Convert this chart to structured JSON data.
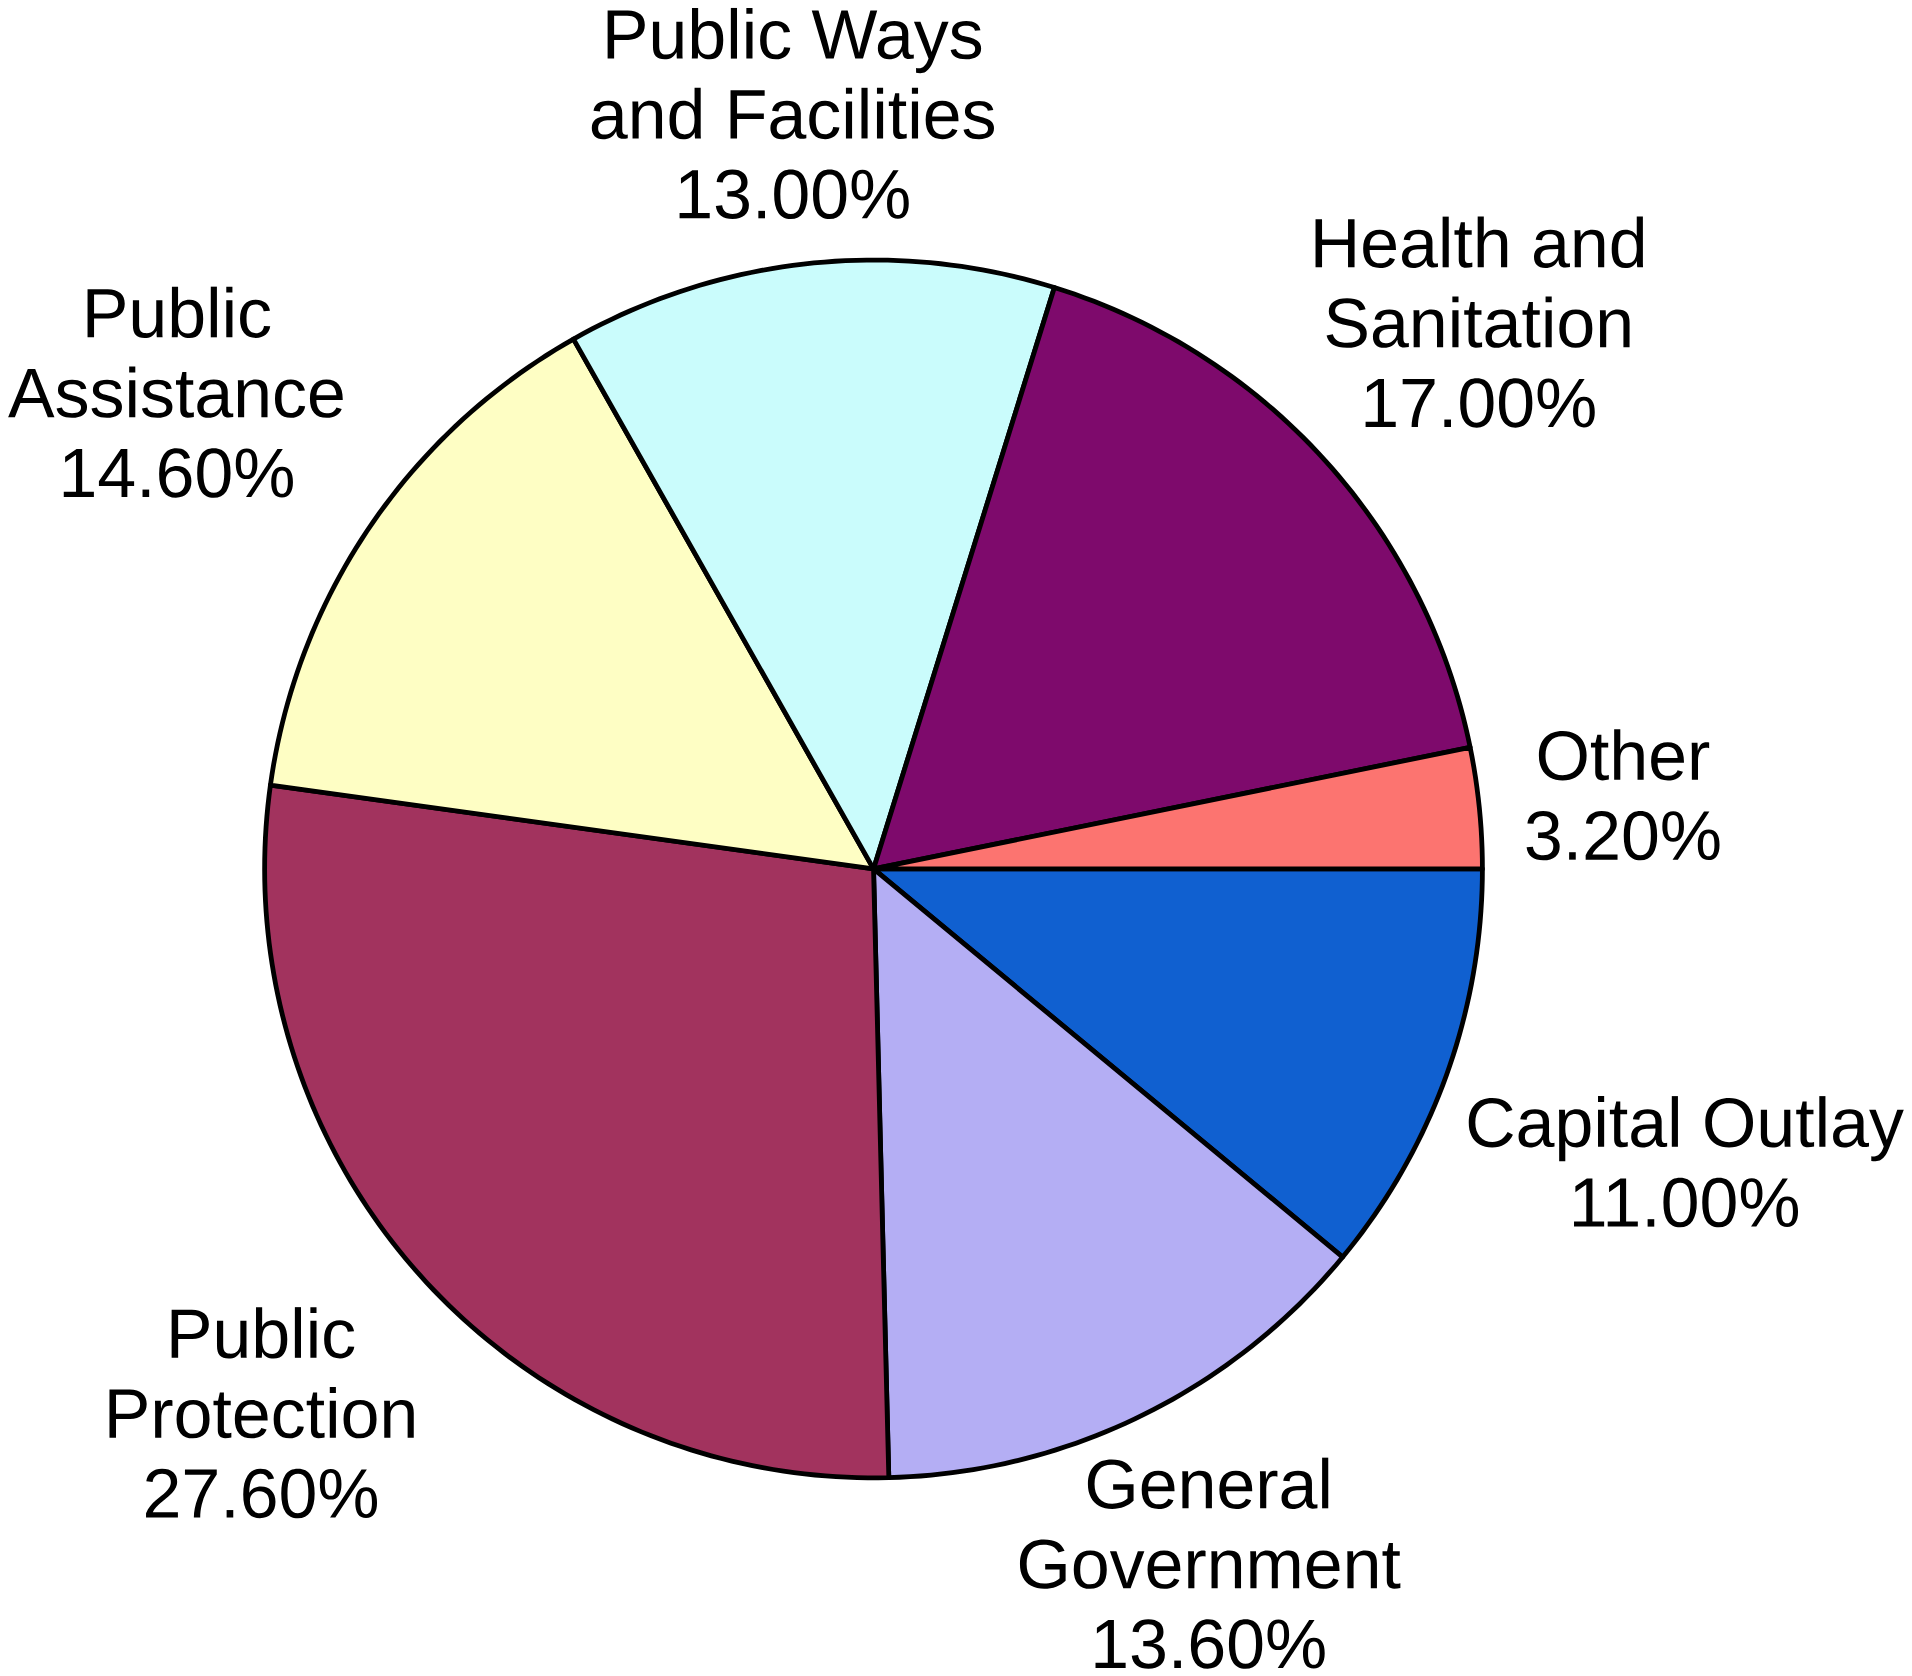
{
  "chart_data": {
    "type": "pie",
    "categories": [
      "Capital Outlay",
      "General Government",
      "Public Protection",
      "Public Assistance",
      "Public Ways and Facilities",
      "Health and Sanitation",
      "Other"
    ],
    "values": [
      11.0,
      13.6,
      27.6,
      14.6,
      13.0,
      17.0,
      3.2
    ],
    "value_labels": [
      "11.00%",
      "13.60%",
      "27.60%",
      "14.60%",
      "13.00%",
      "17.00%",
      "3.20%"
    ],
    "colors": [
      "#1060d0",
      "#b4aef4",
      "#a2335e",
      "#fefec4",
      "#cafcfc",
      "#7e0a6c",
      "#fc7470"
    ]
  }
}
